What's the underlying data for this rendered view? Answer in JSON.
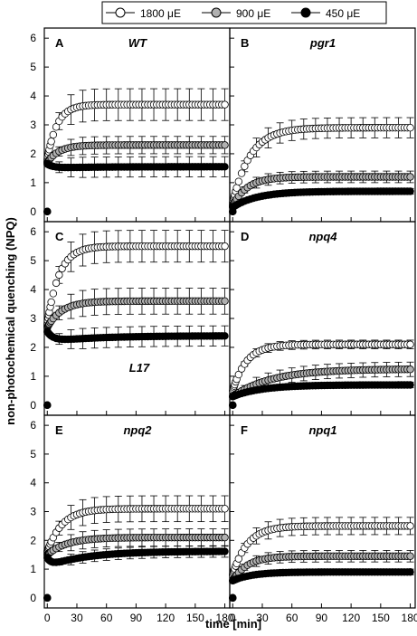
{
  "chart_data": {
    "type": "scatter",
    "xlabel": "time [min]",
    "ylabel": "non-photochemical quenching (NPQ)",
    "xlim": [
      -3,
      185
    ],
    "ylim": [
      -0.35,
      6.35
    ],
    "xticks": [
      "0",
      "30",
      "60",
      "90",
      "120",
      "150",
      "180"
    ],
    "yticks": [
      "0",
      "1",
      "2",
      "3",
      "4",
      "5",
      "6"
    ],
    "legend": {
      "placement": "top-center",
      "entries": [
        {
          "label": "1800 μE",
          "fill": "#ffffff"
        },
        {
          "label": "900 μE",
          "fill": "#b0b0b0"
        },
        {
          "label": "450 μE",
          "fill": "#000000"
        }
      ]
    },
    "panels": [
      {
        "letter": "A",
        "name": "WT",
        "series": [
          {
            "name": "1800 μE",
            "start": 1.8,
            "plateau": 3.7,
            "tau": 10,
            "err": 0.55,
            "peak_amp": 0,
            "peak_decay": 1
          },
          {
            "name": "900 μE",
            "start": 1.7,
            "plateau": 2.3,
            "tau": 12,
            "err": 0.3,
            "peak_amp": 0,
            "peak_decay": 1
          },
          {
            "name": "450 μE",
            "start": 1.5,
            "plateau": 1.55,
            "tau": 40,
            "err": 0.35,
            "peak_amp": 0.15,
            "peak_decay": 6
          }
        ]
      },
      {
        "letter": "B",
        "name": "pgr1",
        "series": [
          {
            "name": "1800 μE",
            "start": 0.3,
            "plateau": 2.9,
            "tau": 18,
            "err": 0.35,
            "peak_amp": 0,
            "peak_decay": 1
          },
          {
            "name": "900 μE",
            "start": 0.2,
            "plateau": 1.2,
            "tau": 15,
            "err": 0.2,
            "peak_amp": 0,
            "peak_decay": 1
          },
          {
            "name": "450 μE",
            "start": 0.15,
            "plateau": 0.7,
            "tau": 25,
            "err": 0.1,
            "peak_amp": 0,
            "peak_decay": 1
          }
        ]
      },
      {
        "letter": "C",
        "name": "L17",
        "series": [
          {
            "name": "1800 μE",
            "start": 2.8,
            "plateau": 5.5,
            "tau": 12,
            "err": 0.55,
            "peak_amp": 0,
            "peak_decay": 1
          },
          {
            "name": "900 μE",
            "start": 2.7,
            "plateau": 3.6,
            "tau": 15,
            "err": 0.45,
            "peak_amp": 0,
            "peak_decay": 1
          },
          {
            "name": "450 μE",
            "start": 2.2,
            "plateau": 2.4,
            "tau": 50,
            "err": 0.35,
            "peak_amp": 0.35,
            "peak_decay": 6
          }
        ]
      },
      {
        "letter": "D",
        "name": "npq4",
        "series": [
          {
            "name": "1800 μE",
            "start": 0.5,
            "plateau": 2.1,
            "tau": 14,
            "err": 0.15,
            "peak_amp": 0,
            "peak_decay": 1
          },
          {
            "name": "900 μE",
            "start": 0.3,
            "plateau": 1.25,
            "tau": 40,
            "err": 0.25,
            "peak_amp": 0,
            "peak_decay": 1
          },
          {
            "name": "450 μE",
            "start": 0.3,
            "plateau": 0.7,
            "tau": 30,
            "err": 0.1,
            "peak_amp": 0,
            "peak_decay": 1
          }
        ]
      },
      {
        "letter": "E",
        "name": "npq2",
        "series": [
          {
            "name": "1800 μE",
            "start": 1.6,
            "plateau": 3.1,
            "tau": 15,
            "err": 0.45,
            "peak_amp": 0,
            "peak_decay": 1
          },
          {
            "name": "900 μE",
            "start": 1.5,
            "plateau": 2.1,
            "tau": 20,
            "err": 0.3,
            "peak_amp": 0,
            "peak_decay": 1
          },
          {
            "name": "450 μE",
            "start": 1.1,
            "plateau": 1.62,
            "tau": 40,
            "err": 0.2,
            "peak_amp": 0.3,
            "peak_decay": 4
          }
        ]
      },
      {
        "letter": "F",
        "name": "npq1",
        "series": [
          {
            "name": "1800 μE",
            "start": 0.8,
            "plateau": 2.5,
            "tau": 15,
            "err": 0.3,
            "peak_amp": 0,
            "peak_decay": 1
          },
          {
            "name": "900 μE",
            "start": 0.6,
            "plateau": 1.45,
            "tau": 15,
            "err": 0.2,
            "peak_amp": 0,
            "peak_decay": 1
          },
          {
            "name": "450 μE",
            "start": 0.6,
            "plateau": 0.9,
            "tau": 20,
            "err": 0.1,
            "peak_amp": 0,
            "peak_decay": 1
          }
        ]
      }
    ]
  }
}
